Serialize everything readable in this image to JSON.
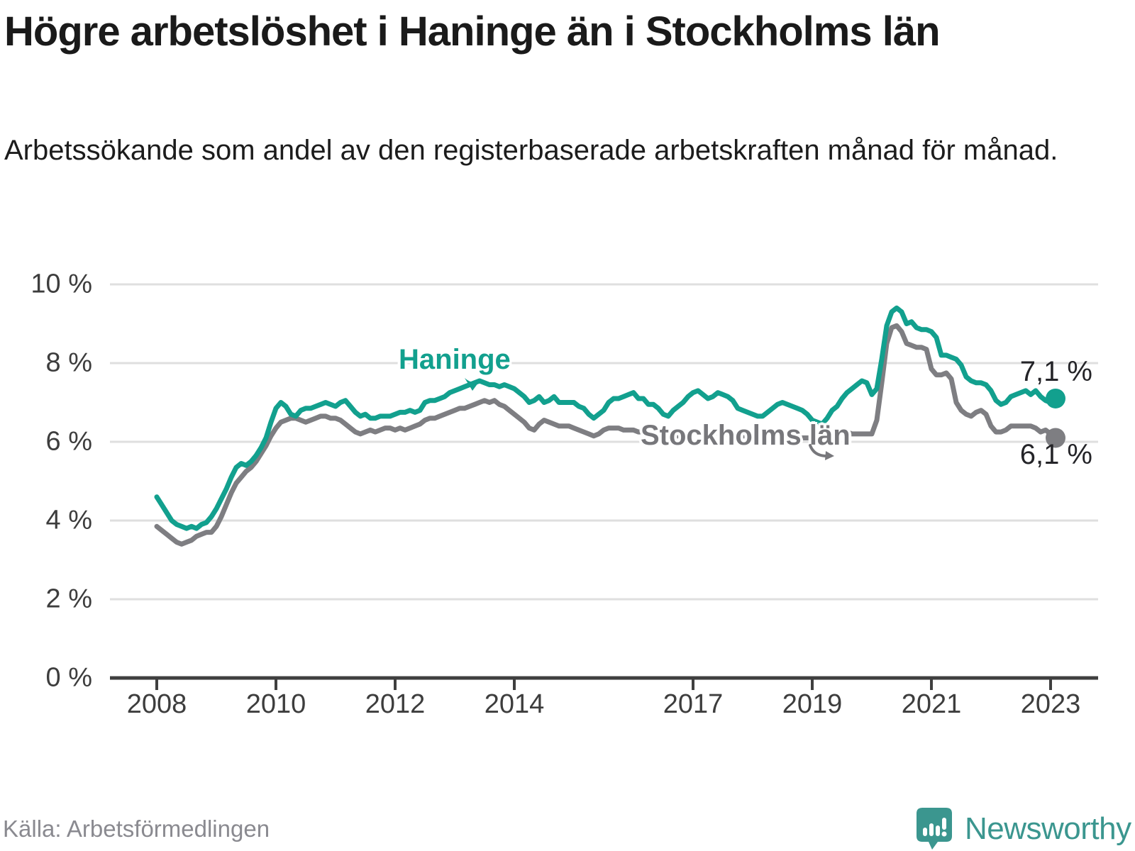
{
  "header": {
    "title": "Högre arbetslöshet i Haninge än i Stockholms län",
    "subtitle": "Arbetssökande som andel av den registerbaserade arbetskraften månad för månad."
  },
  "footer": {
    "source": "Källa: Arbetsförmedlingen",
    "logo_text": "Newsworthy"
  },
  "colors": {
    "haninge_line": "#12a08e",
    "stockholm_line": "#7e7e82",
    "grid": "#dfdfdf",
    "axis": "#3f3f3f",
    "tick_text": "#3d3d3d",
    "value_text": "#242428",
    "source_text": "#8a8a90",
    "logo_teal": "#3b968f"
  },
  "chart_data": {
    "type": "line",
    "title": "Högre arbetslöshet i Haninge än i Stockholms län",
    "subtitle": "Arbetssökande som andel av den registerbaserade arbetskraften månad för månad.",
    "x_unit": "month",
    "x_start_year": 2008,
    "x_end": "2023-02",
    "x_ticks": [
      2008,
      2010,
      2012,
      2014,
      2017,
      2019,
      2021,
      2023
    ],
    "y_ticks": [
      0,
      2,
      4,
      6,
      8,
      10
    ],
    "y_tick_suffix": " %",
    "ylim": [
      0,
      10.5
    ],
    "grid": true,
    "legend_position": "inline-labels",
    "series": [
      {
        "name": "Haninge",
        "end_label": "7,1 %",
        "end_value": 7.1,
        "values": [
          4.6,
          4.4,
          4.2,
          4.0,
          3.9,
          3.85,
          3.8,
          3.85,
          3.8,
          3.9,
          3.95,
          4.1,
          4.3,
          4.55,
          4.8,
          5.1,
          5.35,
          5.45,
          5.4,
          5.5,
          5.65,
          5.85,
          6.1,
          6.5,
          6.85,
          7.0,
          6.9,
          6.7,
          6.65,
          6.8,
          6.85,
          6.85,
          6.9,
          6.95,
          7.0,
          6.95,
          6.9,
          7.0,
          7.05,
          6.9,
          6.75,
          6.65,
          6.7,
          6.6,
          6.6,
          6.65,
          6.65,
          6.65,
          6.7,
          6.75,
          6.75,
          6.8,
          6.75,
          6.8,
          7.0,
          7.05,
          7.05,
          7.1,
          7.15,
          7.25,
          7.3,
          7.35,
          7.4,
          7.45,
          7.5,
          7.55,
          7.5,
          7.45,
          7.45,
          7.4,
          7.45,
          7.4,
          7.35,
          7.25,
          7.15,
          7.0,
          7.05,
          7.15,
          7.0,
          7.05,
          7.15,
          7.0,
          7.0,
          7.0,
          7.0,
          6.9,
          6.85,
          6.7,
          6.6,
          6.7,
          6.8,
          7.0,
          7.1,
          7.1,
          7.15,
          7.2,
          7.25,
          7.1,
          7.1,
          6.95,
          6.95,
          6.85,
          6.7,
          6.65,
          6.8,
          6.9,
          7.0,
          7.15,
          7.25,
          7.3,
          7.2,
          7.1,
          7.15,
          7.25,
          7.2,
          7.15,
          7.05,
          6.85,
          6.8,
          6.75,
          6.7,
          6.65,
          6.65,
          6.75,
          6.85,
          6.95,
          7.0,
          6.95,
          6.9,
          6.85,
          6.8,
          6.7,
          6.55,
          6.5,
          6.45,
          6.6,
          6.8,
          6.9,
          7.1,
          7.25,
          7.35,
          7.45,
          7.55,
          7.5,
          7.2,
          7.35,
          8.1,
          8.95,
          9.3,
          9.4,
          9.3,
          9.0,
          9.05,
          8.9,
          8.85,
          8.85,
          8.8,
          8.65,
          8.2,
          8.2,
          8.15,
          8.1,
          7.95,
          7.65,
          7.55,
          7.5,
          7.5,
          7.45,
          7.3,
          7.05,
          6.95,
          7.0,
          7.15,
          7.2,
          7.25,
          7.3,
          7.2,
          7.3,
          7.15,
          7.05,
          7.0,
          7.1
        ]
      },
      {
        "name": "Stockholms län",
        "end_label": "6,1 %",
        "end_value": 6.1,
        "values": [
          3.85,
          3.75,
          3.65,
          3.55,
          3.45,
          3.4,
          3.45,
          3.5,
          3.6,
          3.65,
          3.7,
          3.7,
          3.85,
          4.1,
          4.4,
          4.7,
          4.95,
          5.1,
          5.25,
          5.35,
          5.5,
          5.7,
          5.9,
          6.15,
          6.35,
          6.5,
          6.55,
          6.6,
          6.6,
          6.55,
          6.5,
          6.55,
          6.6,
          6.65,
          6.65,
          6.6,
          6.6,
          6.55,
          6.45,
          6.35,
          6.25,
          6.2,
          6.25,
          6.3,
          6.25,
          6.3,
          6.35,
          6.35,
          6.3,
          6.35,
          6.3,
          6.35,
          6.4,
          6.45,
          6.55,
          6.6,
          6.6,
          6.65,
          6.7,
          6.75,
          6.8,
          6.85,
          6.85,
          6.9,
          6.95,
          7.0,
          7.05,
          7.0,
          7.05,
          6.95,
          6.9,
          6.8,
          6.7,
          6.6,
          6.5,
          6.35,
          6.3,
          6.45,
          6.55,
          6.5,
          6.45,
          6.4,
          6.4,
          6.4,
          6.35,
          6.3,
          6.25,
          6.2,
          6.15,
          6.2,
          6.3,
          6.35,
          6.35,
          6.35,
          6.3,
          6.3,
          6.3,
          6.25,
          6.25,
          6.3,
          6.35,
          6.3,
          6.25,
          6.2,
          6.15,
          6.15,
          6.2,
          6.2,
          6.25,
          6.25,
          6.2,
          6.15,
          6.2,
          6.25,
          6.2,
          6.2,
          6.15,
          6.1,
          6.15,
          6.15,
          6.2,
          6.15,
          6.15,
          6.2,
          6.2,
          6.25,
          6.25,
          6.2,
          6.15,
          6.1,
          6.1,
          6.1,
          6.1,
          6.1,
          6.1,
          6.15,
          6.15,
          6.2,
          6.25,
          6.25,
          6.2,
          6.2,
          6.2,
          6.2,
          6.2,
          6.55,
          7.5,
          8.5,
          8.9,
          8.95,
          8.8,
          8.5,
          8.45,
          8.4,
          8.4,
          8.35,
          7.85,
          7.7,
          7.7,
          7.75,
          7.6,
          7.0,
          6.8,
          6.7,
          6.65,
          6.75,
          6.8,
          6.7,
          6.4,
          6.25,
          6.25,
          6.3,
          6.4,
          6.4,
          6.4,
          6.4,
          6.4,
          6.35,
          6.25,
          6.3,
          6.2,
          6.1
        ]
      }
    ]
  }
}
